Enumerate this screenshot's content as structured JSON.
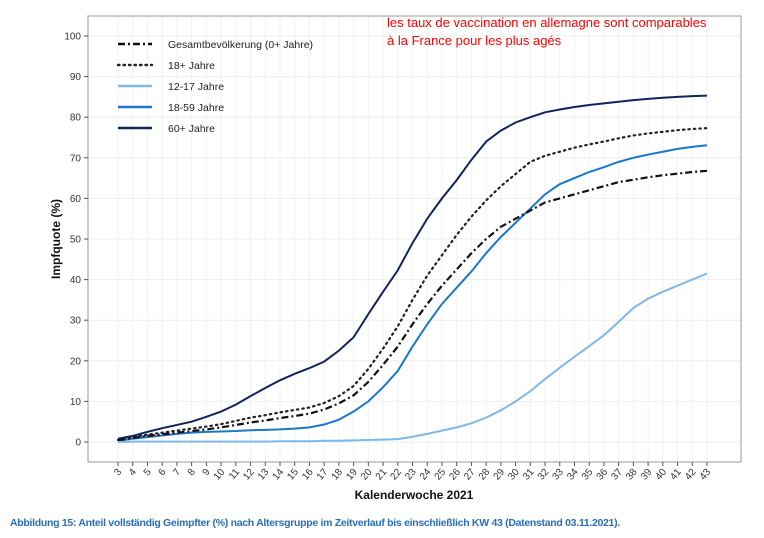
{
  "annotation": {
    "line1": "les taux de vaccination en allemagne sont comparables",
    "line2": "à la France pour les plus agés"
  },
  "caption": "Abbildung 15: Anteil vollständig Geimpfter (%) nach Altersgruppe im Zeitverlauf bis einschließlich KW 43 (Datenstand 03.11.2021).",
  "chart_data": {
    "type": "line",
    "title": "",
    "xlabel": "Kalenderwoche 2021",
    "ylabel": "Impfquote (%)",
    "ylim": [
      -5,
      105
    ],
    "yticks": [
      0,
      10,
      20,
      30,
      40,
      50,
      60,
      70,
      80,
      90,
      100
    ],
    "grid": true,
    "legend_position": "top-left",
    "x": [
      3,
      4,
      5,
      6,
      7,
      8,
      9,
      10,
      11,
      12,
      13,
      14,
      15,
      16,
      17,
      18,
      19,
      20,
      21,
      22,
      23,
      24,
      25,
      26,
      27,
      28,
      29,
      30,
      31,
      32,
      33,
      34,
      35,
      36,
      37,
      38,
      39,
      40,
      41,
      42,
      43
    ],
    "series": [
      {
        "name": "Gesamtbevölkerung (0+ Jahre)",
        "color": "#111111",
        "style": "dashdot",
        "values": [
          0.4,
          1,
          1.5,
          1.9,
          2.3,
          2.7,
          3.1,
          3.6,
          4.2,
          4.8,
          5.3,
          5.9,
          6.4,
          7,
          8,
          9.5,
          11.5,
          14.8,
          19,
          23.5,
          29,
          34,
          38.5,
          42.5,
          46.5,
          50,
          53,
          55,
          57,
          59,
          60,
          61,
          62,
          63,
          64,
          64.6,
          65.2,
          65.7,
          66.1,
          66.5,
          66.8
        ]
      },
      {
        "name": "18+ Jahre",
        "color": "#222222",
        "style": "dotted",
        "values": [
          0.5,
          1.2,
          1.8,
          2.3,
          2.8,
          3.3,
          3.8,
          4.4,
          5.2,
          6,
          6.6,
          7.3,
          7.9,
          8.5,
          9.6,
          11.3,
          13.8,
          18,
          23,
          28.5,
          35,
          41,
          46,
          51,
          55.5,
          59.5,
          63,
          66,
          69,
          70.5,
          71.5,
          72.5,
          73.3,
          74,
          74.8,
          75.5,
          76,
          76.4,
          76.8,
          77.1,
          77.3
        ]
      },
      {
        "name": "12-17 Jahre",
        "color": "#7fb8e6",
        "style": "solid",
        "values": [
          0,
          0.1,
          0.1,
          0.1,
          0.1,
          0.1,
          0.1,
          0.1,
          0.1,
          0.1,
          0.1,
          0.2,
          0.2,
          0.2,
          0.3,
          0.3,
          0.4,
          0.5,
          0.6,
          0.7,
          1.3,
          2,
          2.8,
          3.6,
          4.6,
          6,
          7.8,
          10,
          12.5,
          15.5,
          18.3,
          21,
          23.6,
          26.3,
          29.6,
          33,
          35.3,
          37,
          38.5,
          40,
          41.5
        ]
      },
      {
        "name": "18-59 Jahre",
        "color": "#1a78c8",
        "style": "solid",
        "values": [
          0.3,
          0.8,
          1.2,
          1.6,
          2,
          2.3,
          2.5,
          2.6,
          2.7,
          2.9,
          3,
          3.1,
          3.3,
          3.6,
          4.3,
          5.5,
          7.5,
          10,
          13.5,
          17.5,
          23.5,
          29,
          34,
          38,
          42,
          46.5,
          50.5,
          54,
          57.5,
          61,
          63.5,
          65,
          66.5,
          67.7,
          69,
          70,
          70.8,
          71.5,
          72.2,
          72.7,
          73.1
        ]
      },
      {
        "name": "60+ Jahre",
        "color": "#13235e",
        "style": "solid",
        "values": [
          0.8,
          1.5,
          2.5,
          3.4,
          4.2,
          5,
          6.2,
          7.5,
          9.2,
          11.3,
          13.3,
          15.2,
          16.8,
          18.2,
          19.8,
          22.5,
          25.8,
          31.5,
          37,
          42.3,
          49,
          55,
          60,
          64.5,
          69.5,
          74,
          76.7,
          78.7,
          80,
          81.2,
          81.9,
          82.5,
          83,
          83.4,
          83.8,
          84.2,
          84.5,
          84.8,
          85,
          85.2,
          85.3
        ]
      }
    ]
  }
}
